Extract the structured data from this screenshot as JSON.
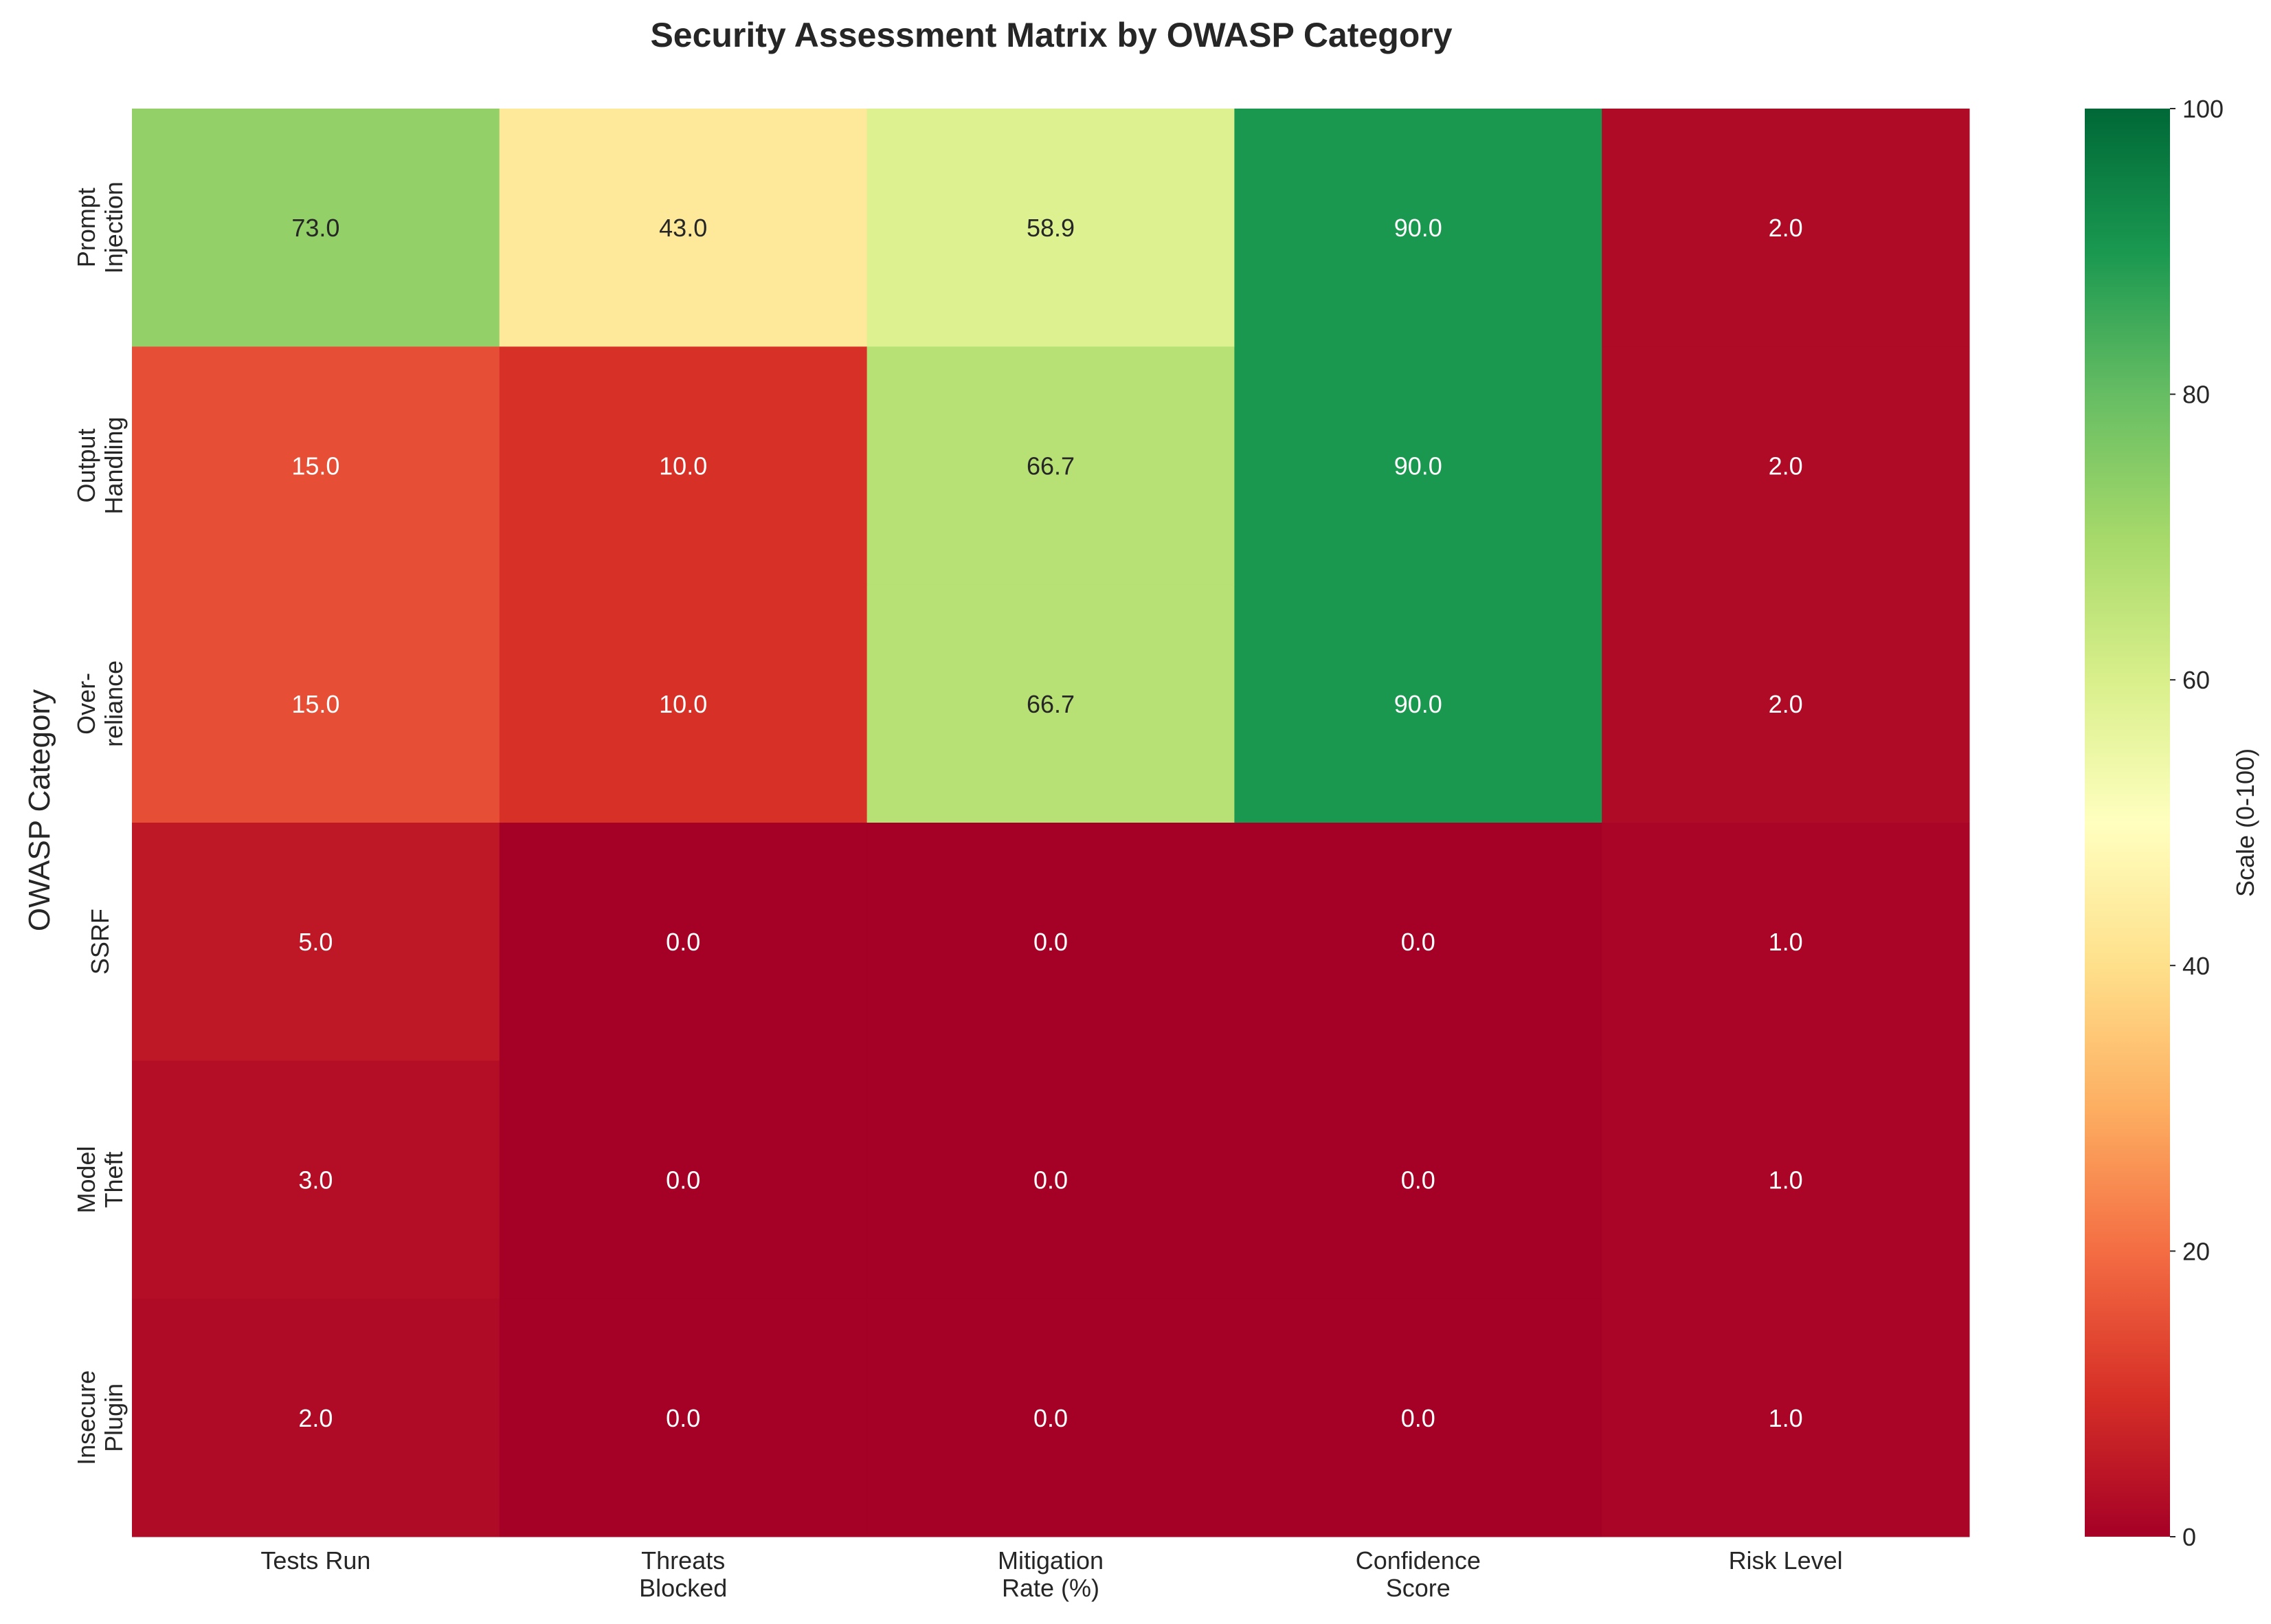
{
  "chart_data": {
    "type": "heatmap",
    "title": "Security Assessment Matrix by OWASP Category",
    "ylabel": "OWASP Category",
    "xlabel": "",
    "rows": [
      [
        "Prompt",
        "Injection"
      ],
      [
        "Output",
        "Handling"
      ],
      [
        "Over-",
        "reliance"
      ],
      [
        "SSRF"
      ],
      [
        "Model",
        "Theft"
      ],
      [
        "Insecure",
        "Plugin"
      ]
    ],
    "columns": [
      [
        "Tests Run"
      ],
      [
        "Threats",
        "Blocked"
      ],
      [
        "Mitigation",
        "Rate (%)"
      ],
      [
        "Confidence",
        "Score"
      ],
      [
        "Risk Level"
      ]
    ],
    "values": [
      [
        73.0,
        43.0,
        58.9,
        90.0,
        2.0
      ],
      [
        15.0,
        10.0,
        66.7,
        90.0,
        2.0
      ],
      [
        15.0,
        10.0,
        66.7,
        90.0,
        2.0
      ],
      [
        5.0,
        0.0,
        0.0,
        0.0,
        1.0
      ],
      [
        3.0,
        0.0,
        0.0,
        0.0,
        1.0
      ],
      [
        2.0,
        0.0,
        0.0,
        0.0,
        1.0
      ]
    ],
    "value_format": "0.0",
    "colormap": "RdYlGn",
    "vmin": 0,
    "vmax": 100,
    "colorbar": {
      "label": "Scale (0-100)",
      "ticks": [
        0,
        20,
        40,
        60,
        80,
        100
      ]
    },
    "grid": false
  }
}
